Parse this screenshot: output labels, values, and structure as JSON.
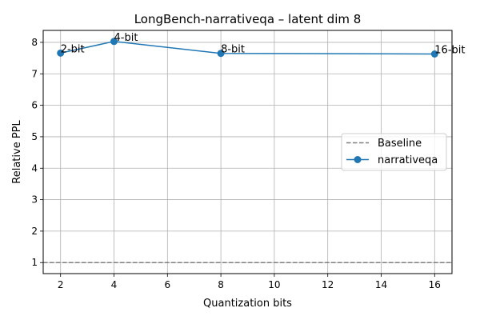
{
  "chart_data": {
    "type": "line",
    "title": "LongBench-narrativeqa – latent dim 8",
    "xlabel": "Quantization bits",
    "ylabel": "Relative PPL",
    "xlim": [
      1.35,
      16.65
    ],
    "ylim": [
      0.65,
      8.38
    ],
    "xticks": [
      2,
      4,
      6,
      8,
      10,
      12,
      14,
      16
    ],
    "yticks": [
      1,
      2,
      3,
      4,
      5,
      6,
      7,
      8
    ],
    "grid": true,
    "legend_position": "center-right",
    "series": [
      {
        "name": "narrativeqa",
        "color": "#1f77b4",
        "marker": "circle",
        "x": [
          2,
          4,
          8,
          16
        ],
        "y": [
          7.66,
          8.03,
          7.65,
          7.63
        ],
        "labels": [
          "2-bit",
          "4-bit",
          "8-bit",
          "16-bit"
        ]
      }
    ],
    "reference_lines": [
      {
        "name": "Baseline",
        "y": 1.0,
        "color": "#808080",
        "style": "dashed"
      }
    ]
  }
}
